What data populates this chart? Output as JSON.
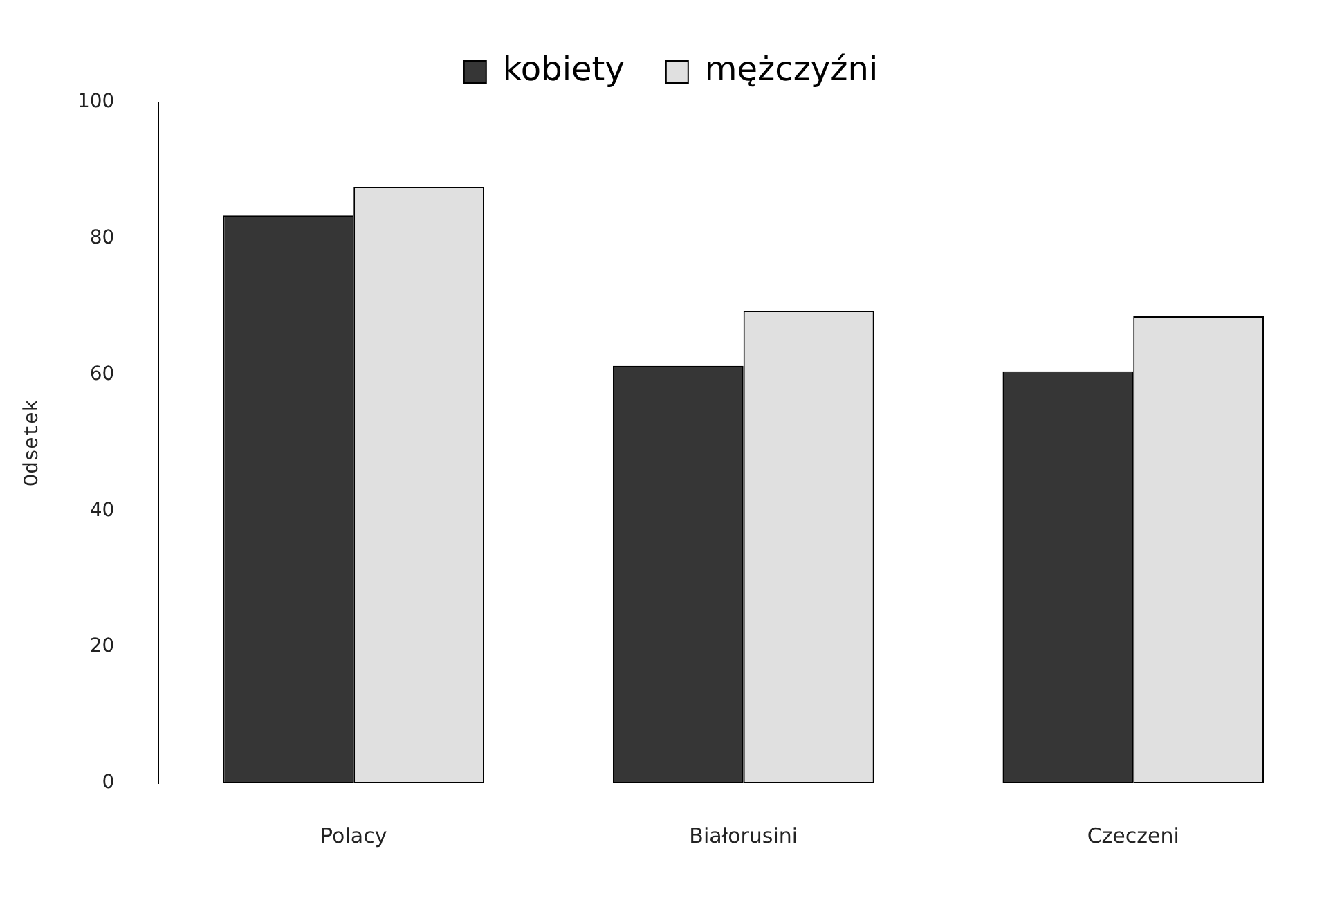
{
  "chart_data": {
    "type": "bar",
    "ylabel": "Odsetek",
    "categories": [
      "Polacy",
      "Białorusini",
      "Czeczeni"
    ],
    "series": [
      {
        "name": "kobiety",
        "color": "#363636",
        "values": [
          83.4,
          61.3,
          60.5
        ]
      },
      {
        "name": "mężczyźni",
        "color": "#e0e0e0",
        "values": [
          87.6,
          69.4,
          68.6
        ]
      }
    ],
    "ylim": [
      0,
      100
    ],
    "yticks": [
      0,
      20,
      40,
      60,
      80,
      100
    ],
    "grid": false,
    "legend": "top"
  }
}
